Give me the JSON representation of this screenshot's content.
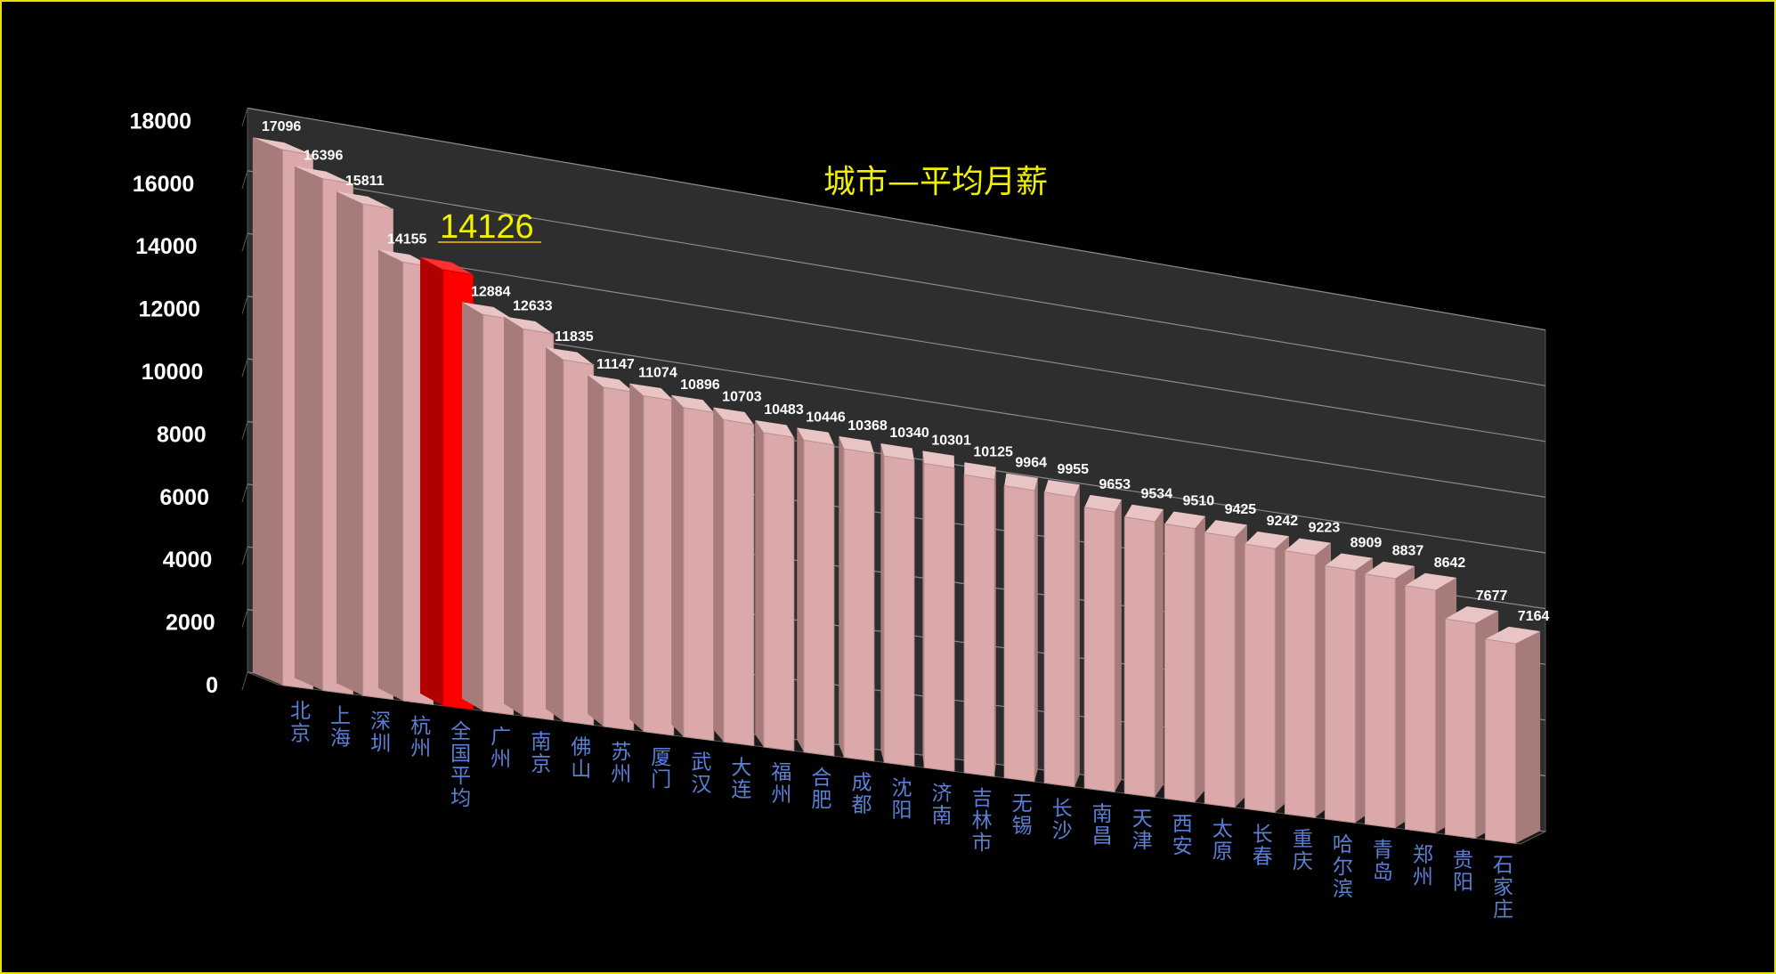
{
  "chart_data": {
    "type": "bar",
    "title": "城市—平均月薪",
    "xlabel": "",
    "ylabel": "",
    "ylim": [
      0,
      18000
    ],
    "yticks": [
      0,
      2000,
      4000,
      6000,
      8000,
      10000,
      12000,
      14000,
      16000,
      18000
    ],
    "grid": true,
    "legend": "none",
    "three_d": true,
    "categories": [
      "北京",
      "上海",
      "深圳",
      "杭州",
      "全国平均",
      "广州",
      "南京",
      "佛山",
      "苏州",
      "厦门",
      "武汉",
      "大连",
      "福州",
      "合肥",
      "成都",
      "沈阳",
      "济南",
      "吉林市",
      "无锡",
      "长沙",
      "南昌",
      "天津",
      "西安",
      "太原",
      "长春",
      "重庆",
      "哈尔滨",
      "青岛",
      "郑州",
      "贵阳",
      "石家庄"
    ],
    "values": [
      17096,
      16396,
      15811,
      14155,
      14126,
      12884,
      12633,
      11835,
      11147,
      11074,
      10896,
      10703,
      10483,
      10446,
      10368,
      10340,
      10301,
      10125,
      9964,
      9955,
      9653,
      9534,
      9510,
      9425,
      9242,
      9223,
      8909,
      8837,
      8642,
      7677,
      7164
    ],
    "highlight_index": 4,
    "highlight_label": "14126",
    "colors": {
      "bar": "#dba9a9",
      "bar_side": "#a87b7b",
      "bar_top": "#e9c4c4",
      "highlight": "#ff0000",
      "category_text": "#5b7fd4",
      "title": "#f0f000",
      "background": "#000000",
      "frame": "#e8e000"
    }
  }
}
